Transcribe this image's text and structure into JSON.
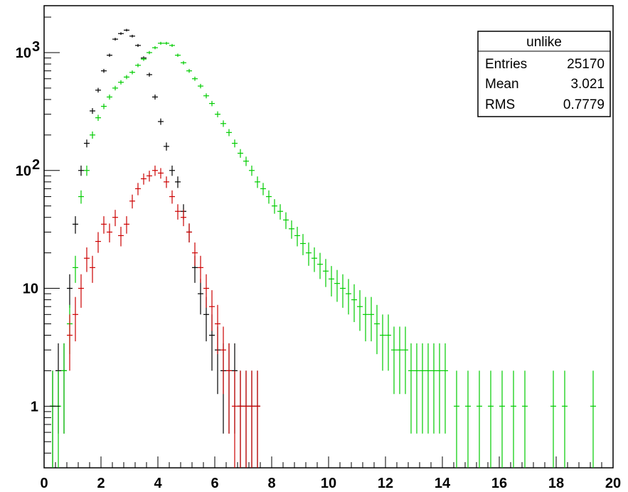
{
  "chart_data": {
    "type": "scatter",
    "title": "",
    "xlabel": "",
    "ylabel": "",
    "xlim": [
      0,
      20
    ],
    "ylim": [
      0.3,
      2500
    ],
    "y_scale": "log",
    "grid": false,
    "x_ticks": [
      0,
      2,
      4,
      6,
      8,
      10,
      12,
      14,
      16,
      18,
      20
    ],
    "y_ticks": [
      {
        "value": 1,
        "label": "1"
      },
      {
        "value": 10,
        "label": "10"
      },
      {
        "value": 100,
        "label": "10",
        "exp": "2"
      },
      {
        "value": 1000,
        "label": "10",
        "exp": "3"
      }
    ],
    "stats_box": {
      "title": "unlike",
      "rows": [
        {
          "label": "Entries",
          "value": "25170"
        },
        {
          "label": "Mean",
          "value": "3.021"
        },
        {
          "label": "RMS",
          "value": "0.7779"
        }
      ]
    },
    "series": [
      {
        "color": "#000000",
        "x": [
          0.3,
          0.5,
          0.7,
          0.9,
          1.1,
          1.3,
          1.5,
          1.7,
          1.9,
          2.1,
          2.3,
          2.5,
          2.7,
          2.9,
          3.1,
          3.3,
          3.5,
          3.7,
          3.9,
          4.1,
          4.3,
          4.5,
          4.7,
          4.9,
          5.1,
          5.3,
          5.5,
          5.7,
          5.9,
          6.1,
          6.3,
          6.5,
          6.7,
          6.9,
          7.1,
          7.3,
          7.5
        ],
        "y": [
          1,
          2,
          2,
          10,
          35,
          100,
          170,
          320,
          480,
          700,
          950,
          1300,
          1450,
          1550,
          1380,
          1150,
          900,
          650,
          420,
          260,
          160,
          100,
          80,
          45,
          30,
          15,
          9,
          6,
          4,
          3,
          2,
          2,
          2,
          1,
          1,
          1,
          1
        ]
      },
      {
        "color": "#00cc00",
        "x": [
          0.3,
          0.5,
          0.7,
          0.9,
          1.1,
          1.3,
          1.5,
          1.7,
          1.9,
          2.1,
          2.3,
          2.5,
          2.7,
          2.9,
          3.1,
          3.3,
          3.5,
          3.7,
          3.9,
          4.1,
          4.3,
          4.5,
          4.7,
          4.9,
          5.1,
          5.3,
          5.5,
          5.7,
          5.9,
          6.1,
          6.3,
          6.5,
          6.7,
          6.9,
          7.1,
          7.3,
          7.5,
          7.7,
          7.9,
          8.1,
          8.3,
          8.5,
          8.7,
          8.9,
          9.1,
          9.3,
          9.5,
          9.7,
          9.9,
          10.1,
          10.3,
          10.5,
          10.7,
          10.9,
          11.1,
          11.3,
          11.5,
          11.7,
          11.9,
          12.1,
          12.3,
          12.5,
          12.7,
          12.9,
          13.1,
          13.3,
          13.5,
          13.7,
          13.9,
          14.1,
          14.5,
          14.9,
          15.3,
          15.7,
          16.1,
          16.5,
          16.9,
          17.9,
          18.3,
          19.3
        ],
        "y": [
          1,
          1,
          2,
          5,
          15,
          60,
          100,
          200,
          280,
          350,
          420,
          500,
          560,
          620,
          680,
          780,
          880,
          1000,
          1100,
          1200,
          1200,
          1150,
          950,
          820,
          700,
          600,
          520,
          430,
          370,
          300,
          250,
          210,
          170,
          140,
          120,
          100,
          80,
          70,
          60,
          50,
          45,
          38,
          32,
          28,
          24,
          20,
          18,
          16,
          14,
          12,
          11,
          10,
          9,
          8,
          7,
          6,
          6,
          5,
          4,
          4,
          3,
          3,
          3,
          2,
          2,
          2,
          2,
          2,
          2,
          2,
          1,
          1,
          1,
          1,
          1,
          1,
          1,
          1,
          1,
          1
        ]
      },
      {
        "color": "#cc0000",
        "x": [
          0.9,
          1.1,
          1.3,
          1.5,
          1.7,
          1.9,
          2.1,
          2.3,
          2.5,
          2.7,
          2.9,
          3.1,
          3.3,
          3.5,
          3.7,
          3.9,
          4.1,
          4.3,
          4.5,
          4.7,
          4.9,
          5.1,
          5.3,
          5.5,
          5.7,
          5.9,
          6.1,
          6.3,
          6.5,
          6.7,
          6.9,
          7.1,
          7.3,
          7.5
        ],
        "y": [
          4,
          6,
          10,
          18,
          15,
          25,
          35,
          30,
          40,
          28,
          35,
          55,
          70,
          85,
          90,
          100,
          95,
          80,
          60,
          45,
          40,
          30,
          20,
          15,
          10,
          7,
          5,
          3,
          2,
          1,
          1,
          1,
          1,
          1
        ]
      }
    ]
  }
}
